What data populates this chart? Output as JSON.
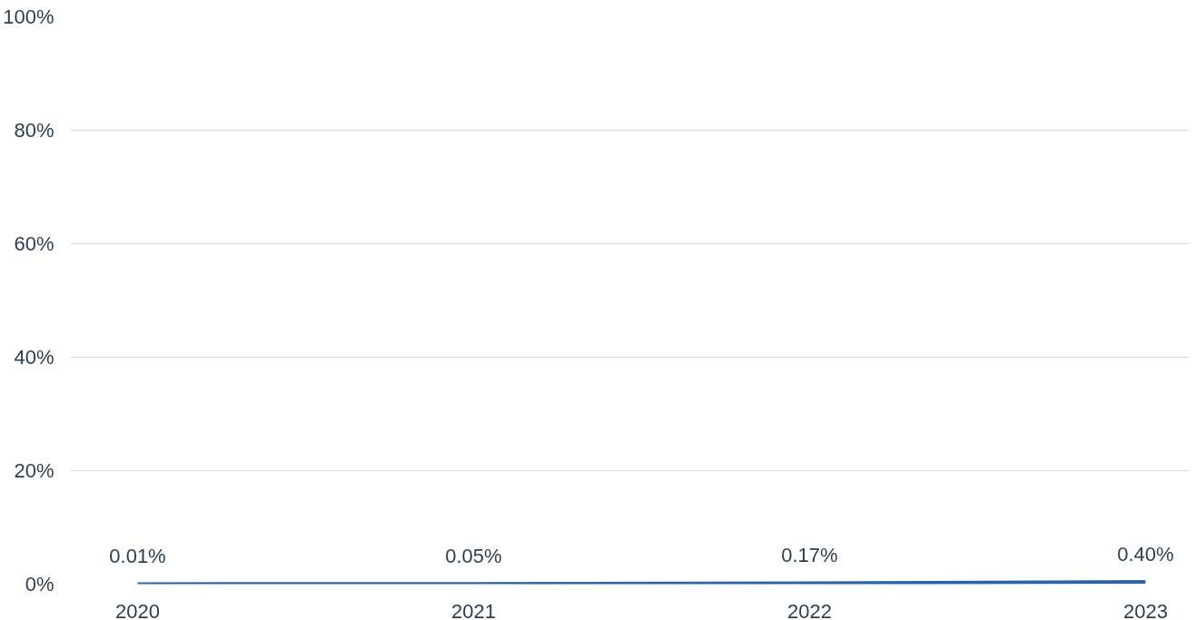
{
  "chart_data": {
    "type": "line",
    "categories": [
      "2020",
      "2021",
      "2022",
      "2023"
    ],
    "series": [
      {
        "color": "#2a62b0",
        "values": [
          0.01,
          0.05,
          0.17,
          0.4
        ],
        "value_labels": [
          "0.01%",
          "0.05%",
          "0.17%",
          "0.40%"
        ]
      }
    ],
    "ylim": [
      0,
      100
    ],
    "yticks": [
      {
        "value": 0,
        "label": "0%"
      },
      {
        "value": 20,
        "label": "20%"
      },
      {
        "value": 40,
        "label": "40%"
      },
      {
        "value": 60,
        "label": "60%"
      },
      {
        "value": 80,
        "label": "80%"
      },
      {
        "value": 100,
        "label": "100%"
      }
    ],
    "grid": "y",
    "marker": "none",
    "line_style": "solid"
  }
}
